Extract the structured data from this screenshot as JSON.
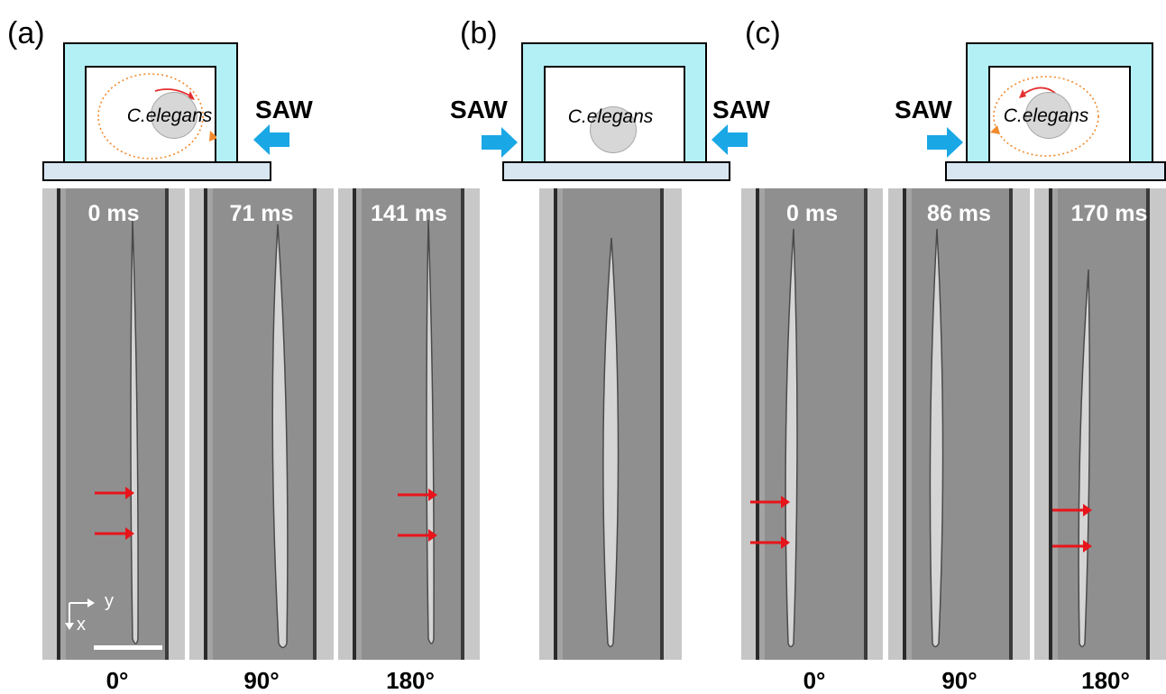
{
  "panels": {
    "a": {
      "label": "(a)",
      "worm_label": "C.elegans",
      "saw_right": "SAW"
    },
    "b": {
      "label": "(b)",
      "worm_label": "C.elegans",
      "saw_left": "SAW",
      "saw_right": "SAW"
    },
    "c": {
      "label": "(c)",
      "worm_label": "C.elegans",
      "saw_left": "SAW"
    }
  },
  "frames": [
    {
      "time": "0 ms",
      "angle": "0°",
      "arrows": true
    },
    {
      "time": "71 ms",
      "angle": "90°",
      "arrows": false
    },
    {
      "time": "141 ms",
      "angle": "180°",
      "arrows": true
    },
    {
      "time": "",
      "angle": "",
      "arrows": false
    },
    {
      "time": "0 ms",
      "angle": "0°",
      "arrows": true
    },
    {
      "time": "86 ms",
      "angle": "90°",
      "arrows": false
    },
    {
      "time": "170 ms",
      "angle": "180°",
      "arrows": true
    }
  ],
  "axes": {
    "x_label": "x",
    "y_label": "y"
  },
  "colors": {
    "chip": "#b3f0f5",
    "substrate": "#d8e6f2",
    "saw_arrow": "#1aa7e6",
    "rotation_arrow": "#e53030",
    "orbit": "#f08a2c",
    "marker_arrow": "#e8141b"
  }
}
